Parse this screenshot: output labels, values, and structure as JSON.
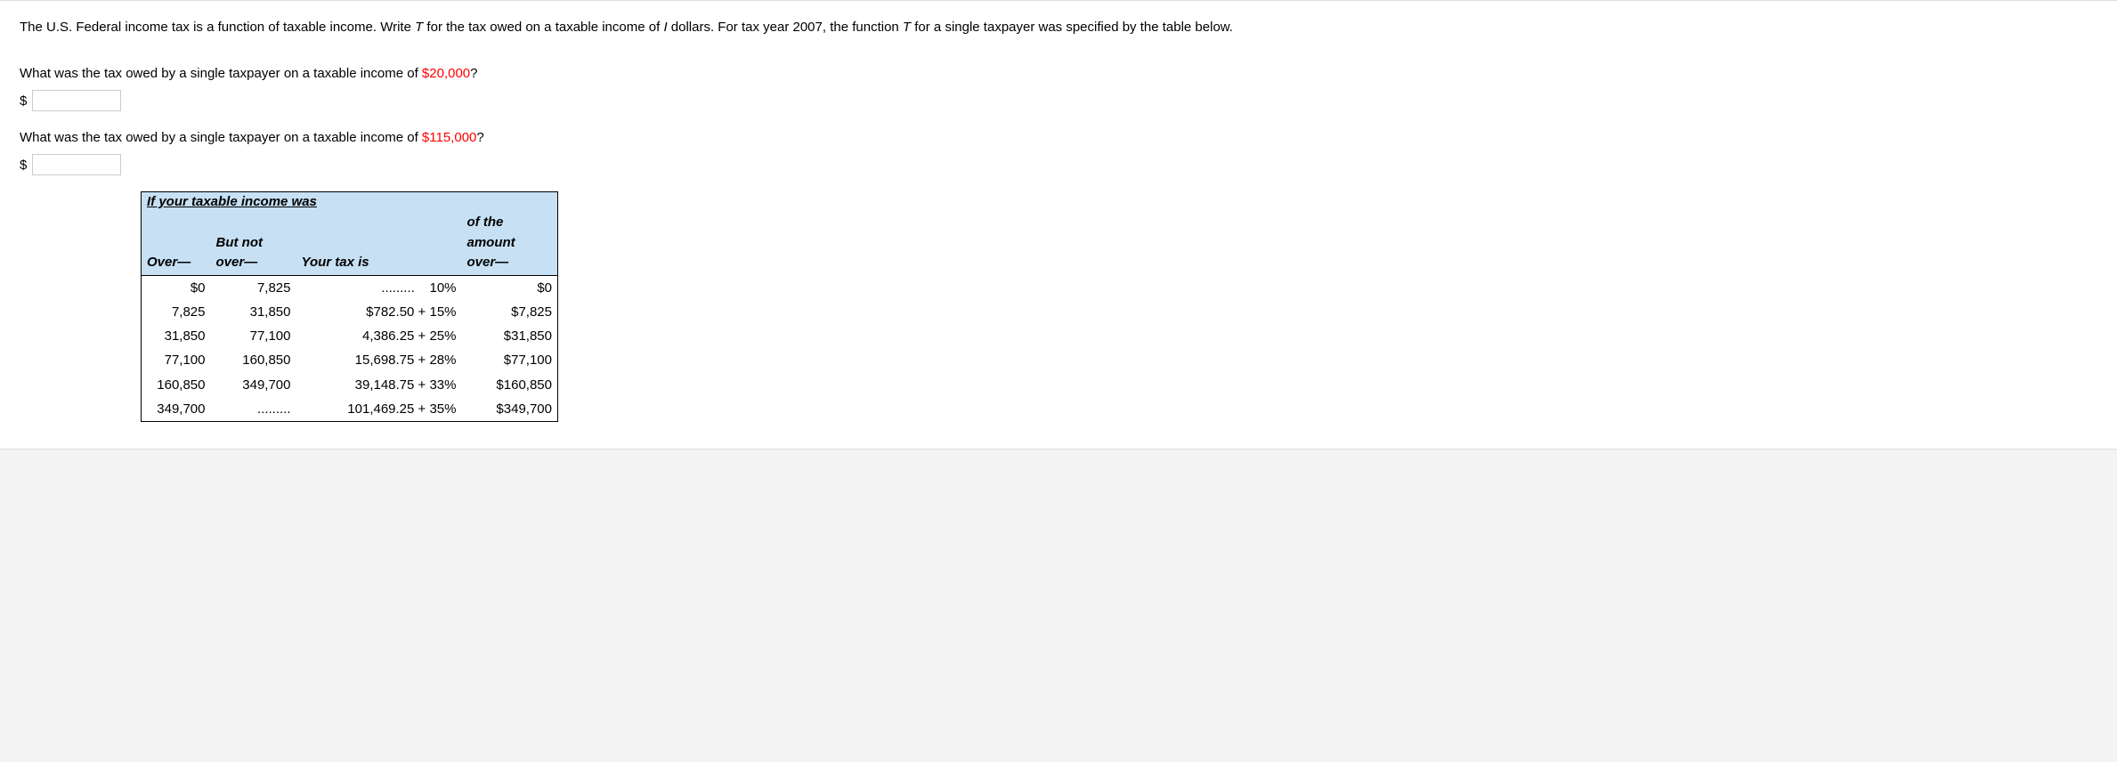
{
  "intro_html": "The U.S. Federal income tax is a function of taxable income. Write <span class=\"ital\">T</span> for the tax owed on a taxable income of <span class=\"ital\">I</span> dollars. For tax year 2007, the function <span class=\"ital\">T</span> for a single taxpayer was specified by the table below.",
  "q1": {
    "prefix": "What was the tax owed by a single taxpayer on a taxable income of ",
    "amount": "$20,000",
    "suffix": "?"
  },
  "q2": {
    "prefix": "What was the tax owed by a single taxpayer on a taxable income of ",
    "amount": "$115,000",
    "suffix": "?"
  },
  "dollar": "$",
  "table": {
    "title": "If your taxable income was",
    "headers": {
      "over": "Over—",
      "but_not_over": "But not<br>over—",
      "your_tax_is": "Your tax is",
      "amount_over": "of the<br>amount<br>over—"
    },
    "rows": [
      {
        "over": "$0",
        "but_not": "7,825",
        "tax": "......... &nbsp;&nbsp; 10%",
        "amt": "$0"
      },
      {
        "over": "7,825",
        "but_not": "31,850",
        "tax": "$782.50 + 15%",
        "amt": "$7,825"
      },
      {
        "over": "31,850",
        "but_not": "77,100",
        "tax": "4,386.25 + 25%",
        "amt": "$31,850"
      },
      {
        "over": "77,100",
        "but_not": "160,850",
        "tax": "15,698.75 + 28%",
        "amt": "$77,100"
      },
      {
        "over": "160,850",
        "but_not": "349,700",
        "tax": "39,148.75 + 33%",
        "amt": "$160,850"
      },
      {
        "over": "349,700",
        "but_not": ".........",
        "tax": "101,469.25 + 35%",
        "amt": "$349,700"
      }
    ]
  }
}
